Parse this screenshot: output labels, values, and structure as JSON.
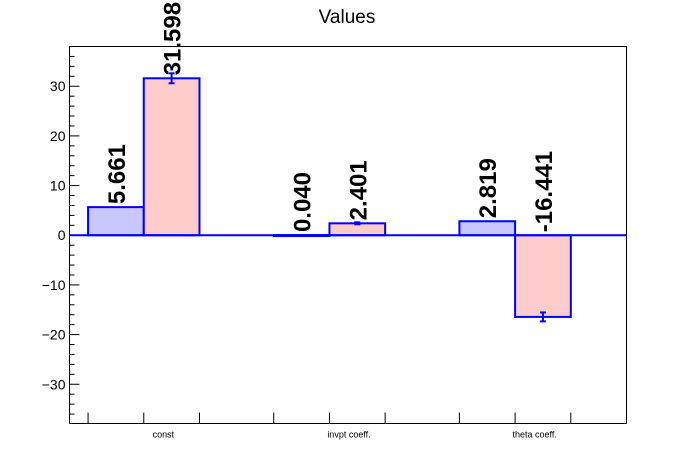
{
  "chart_data": {
    "type": "bar",
    "title": "Values",
    "categories": [
      "const",
      "invpt coeff.",
      "theta coeff."
    ],
    "series": [
      {
        "values": [
          5.661,
          0.04,
          2.819
        ],
        "errors": [
          0,
          0,
          0
        ],
        "labels": [
          "5.661",
          "0.040",
          "2.819"
        ],
        "color": "#c8c8ff"
      },
      {
        "values": [
          31.598,
          2.401,
          -16.441
        ],
        "errors": [
          1.0,
          0.2,
          0.9
        ],
        "labels": [
          "31.598",
          "2.401",
          "-16.441"
        ],
        "color": "#ffcccc"
      }
    ],
    "ylim": [
      -37.9,
      38.0
    ],
    "yticks": [
      -30,
      -20,
      -10,
      0,
      10,
      20,
      30
    ],
    "ytick_labels": [
      "−30",
      "−20",
      "−10",
      "0",
      "10",
      "20",
      "30"
    ],
    "xlabel": "",
    "ylabel": "",
    "grid": false,
    "outline_color": "#0000ff"
  }
}
